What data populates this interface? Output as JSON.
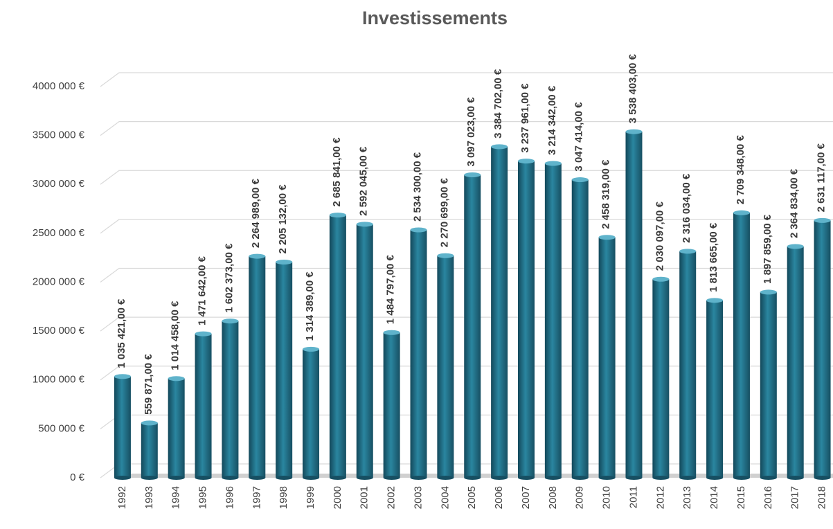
{
  "chart_data": {
    "type": "bar",
    "title": "Investissements",
    "categories": [
      "1992",
      "1993",
      "1994",
      "1995",
      "1996",
      "1997",
      "1998",
      "1999",
      "2000",
      "2001",
      "2002",
      "2003",
      "2004",
      "2005",
      "2006",
      "2007",
      "2008",
      "2009",
      "2010",
      "2011",
      "2012",
      "2013",
      "2014",
      "2015",
      "2016",
      "2017",
      "2018"
    ],
    "values": [
      1035421,
      559871,
      1014458,
      1471642,
      1602373,
      2264989,
      2205132,
      1314389,
      2685841,
      2592045,
      1484797,
      2534300,
      2270699,
      3097023,
      3384702,
      3237961,
      3214342,
      3047414,
      2458319,
      3538403,
      2030097,
      2316034,
      1813665,
      2709348,
      1897859,
      2364834,
      2631117
    ],
    "value_labels": [
      "1 035 421,00 €",
      "559 871,00 €",
      "1 014 458,00 €",
      "1 471 642,00 €",
      "1 602 373,00 €",
      "2 264 989,00 €",
      "2 205 132,00 €",
      "1 314 389,00 €",
      "2 685 841,00 €",
      "2 592 045,00 €",
      "1 484 797,00 €",
      "2 534 300,00 €",
      "2 270 699,00 €",
      "3 097 023,00 €",
      "3 384 702,00 €",
      "3 237 961,00 €",
      "3 214 342,00 €",
      "3 047 414,00 €",
      "2 458 319,00 €",
      "3 538 403,00 €",
      "2 030 097,00 €",
      "2 316 034,00 €",
      "1 813 665,00 €",
      "2 709 348,00 €",
      "1 897 859,00 €",
      "2 364 834,00 €",
      "2 631 117,00 €"
    ],
    "color": "#2a86a0",
    "ylim": [
      0,
      4000000
    ],
    "yticks": [
      {
        "value": 0,
        "label": "0 €"
      },
      {
        "value": 500000,
        "label": "500 000 €"
      },
      {
        "value": 1000000,
        "label": "1000 000 €"
      },
      {
        "value": 1500000,
        "label": "1500 000 €"
      },
      {
        "value": 2000000,
        "label": "2000 000 €"
      },
      {
        "value": 2500000,
        "label": "2500 000 €"
      },
      {
        "value": 3000000,
        "label": "3000 000 €"
      },
      {
        "value": 3500000,
        "label": "3500 000 €"
      },
      {
        "value": 4000000,
        "label": "4000 000 €"
      }
    ],
    "grid": true
  }
}
